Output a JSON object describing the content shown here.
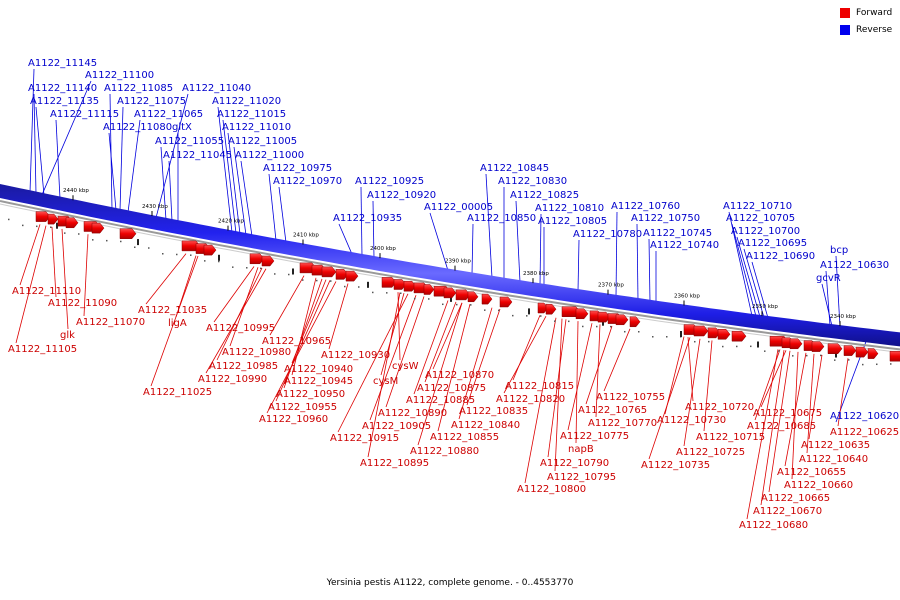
{
  "legend": [
    {
      "label": "Forward",
      "color": "#ee0000"
    },
    {
      "label": "Reverse",
      "color": "#0000ee"
    }
  ],
  "caption": "Yersinia pestis A1122, complete genome. - 0..4553770",
  "scale_labels": [
    "2440 kbp",
    "2430 kbp",
    "2420 kbp",
    "2410 kbp",
    "2400 kbp",
    "2390 kbp",
    "2380 kbp",
    "2370 kbp",
    "2360 kbp",
    "2350 kbp",
    "2340 kbp"
  ],
  "reverse_genes": [
    "A1122_11145",
    "A1122_11100",
    "A1122_11140",
    "A1122_11085",
    "A1122_11040",
    "A1122_11135",
    "A1122_11075",
    "A1122_11020",
    "A1122_11115",
    "A1122_11065",
    "A1122_11015",
    "A1122_11080",
    "gltX",
    "A1122_11010",
    "A1122_11055",
    "A1122_11005",
    "A1122_11045",
    "A1122_11000",
    "A1122_10975",
    "A1122_10970",
    "A1122_10925",
    "A1122_10920",
    "A1122_10935",
    "A1122_00005",
    "A1122_10850",
    "A1122_10845",
    "A1122_10830",
    "A1122_10825",
    "A1122_10810",
    "A1122_10805",
    "A1122_10780",
    "A1122_10760",
    "A1122_10750",
    "A1122_10745",
    "A1122_10740",
    "A1122_10710",
    "A1122_10705",
    "A1122_10700",
    "A1122_10695",
    "A1122_10690",
    "bcp",
    "A1122_10630",
    "gcvR",
    "A1122_10620"
  ],
  "forward_genes": [
    "A1122_11110",
    "A1122_11090",
    "glk",
    "A1122_11070",
    "A1122_11105",
    "A1122_11035",
    "ligA",
    "A1122_11025",
    "A1122_10995",
    "A1122_10965",
    "A1122_10980",
    "A1122_10985",
    "A1122_10990",
    "A1122_10930",
    "A1122_10940",
    "A1122_10945",
    "A1122_10950",
    "A1122_10955",
    "A1122_10960",
    "cysW",
    "cysM",
    "A1122_10870",
    "A1122_10875",
    "A1122_10885",
    "A1122_10890",
    "A1122_10905",
    "A1122_10915",
    "A1122_10895",
    "A1122_10835",
    "A1122_10840",
    "A1122_10855",
    "A1122_10880",
    "A1122_10815",
    "A1122_10820",
    "A1122_10755",
    "A1122_10765",
    "A1122_10770",
    "A1122_10775",
    "napB",
    "A1122_10790",
    "A1122_10795",
    "A1122_10800",
    "A1122_10720",
    "A1122_10730",
    "A1122_10715",
    "A1122_10725",
    "A1122_10735",
    "A1122_10675",
    "A1122_10685",
    "A1122_10625",
    "A1122_10635",
    "A1122_10640",
    "A1122_10655",
    "A1122_10660",
    "A1122_10665",
    "A1122_10670",
    "A1122_10680"
  ]
}
